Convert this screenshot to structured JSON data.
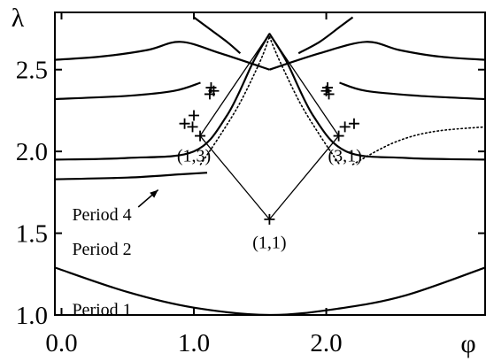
{
  "chart_data": {
    "type": "line",
    "xlabel": "φ",
    "ylabel": "λ",
    "xlim": [
      -0.05,
      3.2
    ],
    "ylim": [
      1.0,
      2.85
    ],
    "xticks": [
      {
        "value": 0.0,
        "label": "0.0"
      },
      {
        "value": 1.0,
        "label": "1.0"
      },
      {
        "value": 2.0,
        "label": "2.0"
      }
    ],
    "yticks": [
      {
        "value": 1.0,
        "label": "1.0"
      },
      {
        "value": 1.5,
        "label": "1.5"
      },
      {
        "value": 2.0,
        "label": "2.0"
      },
      {
        "value": 2.5,
        "label": "2.5"
      }
    ],
    "curve_labels": [
      {
        "text": "Period 1",
        "x": 0.08,
        "y": 1.03
      },
      {
        "text": "Period 2",
        "x": 0.08,
        "y": 1.4
      },
      {
        "text": "Period 4",
        "x": 0.08,
        "y": 1.61
      }
    ],
    "orbit_labels": [
      {
        "text": "(1,1)",
        "x": 1.571,
        "y": 1.44
      },
      {
        "text": "(1,3)",
        "x": 1.0,
        "y": 1.97
      },
      {
        "text": "(3,1)",
        "x": 2.141,
        "y": 1.97
      }
    ],
    "bifurcation_points": [
      {
        "x": 1.571,
        "y": 1.585
      },
      {
        "x": 1.047,
        "y": 2.095
      },
      {
        "x": 2.094,
        "y": 2.095
      },
      {
        "x": 0.93,
        "y": 2.17
      },
      {
        "x": 0.99,
        "y": 2.15
      },
      {
        "x": 1.0,
        "y": 2.22
      },
      {
        "x": 1.12,
        "y": 2.35
      },
      {
        "x": 1.15,
        "y": 2.37
      },
      {
        "x": 1.13,
        "y": 2.39
      },
      {
        "x": 2.141,
        "y": 2.15
      },
      {
        "x": 2.21,
        "y": 2.17
      },
      {
        "x": 2.02,
        "y": 2.35
      },
      {
        "x": 2.0,
        "y": 2.37
      },
      {
        "x": 2.01,
        "y": 2.39
      }
    ],
    "connecting_lines": [
      {
        "x": [
          1.047,
          1.571,
          2.094
        ],
        "y": [
          2.095,
          1.585,
          2.095
        ]
      },
      {
        "x": [
          1.047,
          1.571,
          2.094
        ],
        "y": [
          2.095,
          2.72,
          2.095
        ]
      }
    ],
    "curves": [
      {
        "style": "solid",
        "x": [
          -0.05,
          0.5,
          1.0,
          1.571,
          2.1,
          2.6,
          3.2
        ],
        "y": [
          1.29,
          1.14,
          1.045,
          1.0,
          1.04,
          1.12,
          1.29
        ]
      },
      {
        "style": "solid",
        "x": [
          -0.05,
          0.5,
          0.9,
          1.1
        ],
        "y": [
          1.83,
          1.84,
          1.86,
          1.87
        ]
      },
      {
        "style": "solid",
        "x": [
          -0.05,
          0.5,
          1.0,
          1.25,
          1.45,
          1.571
        ],
        "y": [
          1.95,
          1.96,
          2.0,
          2.22,
          2.55,
          2.72
        ]
      },
      {
        "style": "solid",
        "x": [
          1.571,
          1.7,
          1.9,
          2.15,
          2.6,
          3.2
        ],
        "y": [
          2.72,
          2.55,
          2.22,
          2.0,
          1.96,
          1.95
        ]
      },
      {
        "style": "solid",
        "x": [
          -0.05,
          0.5,
          0.85,
          1.05
        ],
        "y": [
          2.32,
          2.34,
          2.37,
          2.42
        ]
      },
      {
        "style": "solid",
        "x": [
          2.1,
          2.3,
          2.7,
          3.2
        ],
        "y": [
          2.42,
          2.37,
          2.34,
          2.32
        ]
      },
      {
        "style": "solid",
        "x": [
          -0.05,
          0.3,
          0.65,
          0.9,
          1.2,
          1.571
        ],
        "y": [
          2.56,
          2.58,
          2.62,
          2.67,
          2.6,
          2.5
        ]
      },
      {
        "style": "solid",
        "x": [
          1.571,
          1.95,
          2.3,
          2.55,
          2.85,
          3.2
        ],
        "y": [
          2.5,
          2.6,
          2.67,
          2.62,
          2.58,
          2.56
        ]
      },
      {
        "style": "dotted",
        "x": [
          1.05,
          1.2,
          1.35,
          1.5,
          1.571
        ],
        "y": [
          1.92,
          2.1,
          2.3,
          2.55,
          2.7
        ]
      },
      {
        "style": "dotted",
        "x": [
          1.571,
          1.65,
          1.8,
          1.95,
          2.1
        ],
        "y": [
          2.7,
          2.55,
          2.3,
          2.1,
          1.92
        ]
      },
      {
        "style": "dotted",
        "x": [
          2.2,
          2.5,
          2.8,
          3.2
        ],
        "y": [
          1.92,
          2.05,
          2.12,
          2.15
        ]
      },
      {
        "style": "solid",
        "x": [
          1.0,
          1.1,
          1.25,
          1.35
        ],
        "y": [
          2.82,
          2.76,
          2.67,
          2.6
        ]
      },
      {
        "style": "solid",
        "x": [
          1.79,
          1.95,
          2.1,
          2.2
        ],
        "y": [
          2.6,
          2.67,
          2.76,
          2.82
        ]
      }
    ],
    "annotation_arrow": {
      "from": {
        "x": 0.58,
        "y": 1.66
      },
      "to": {
        "x": 0.73,
        "y": 1.765
      }
    }
  }
}
